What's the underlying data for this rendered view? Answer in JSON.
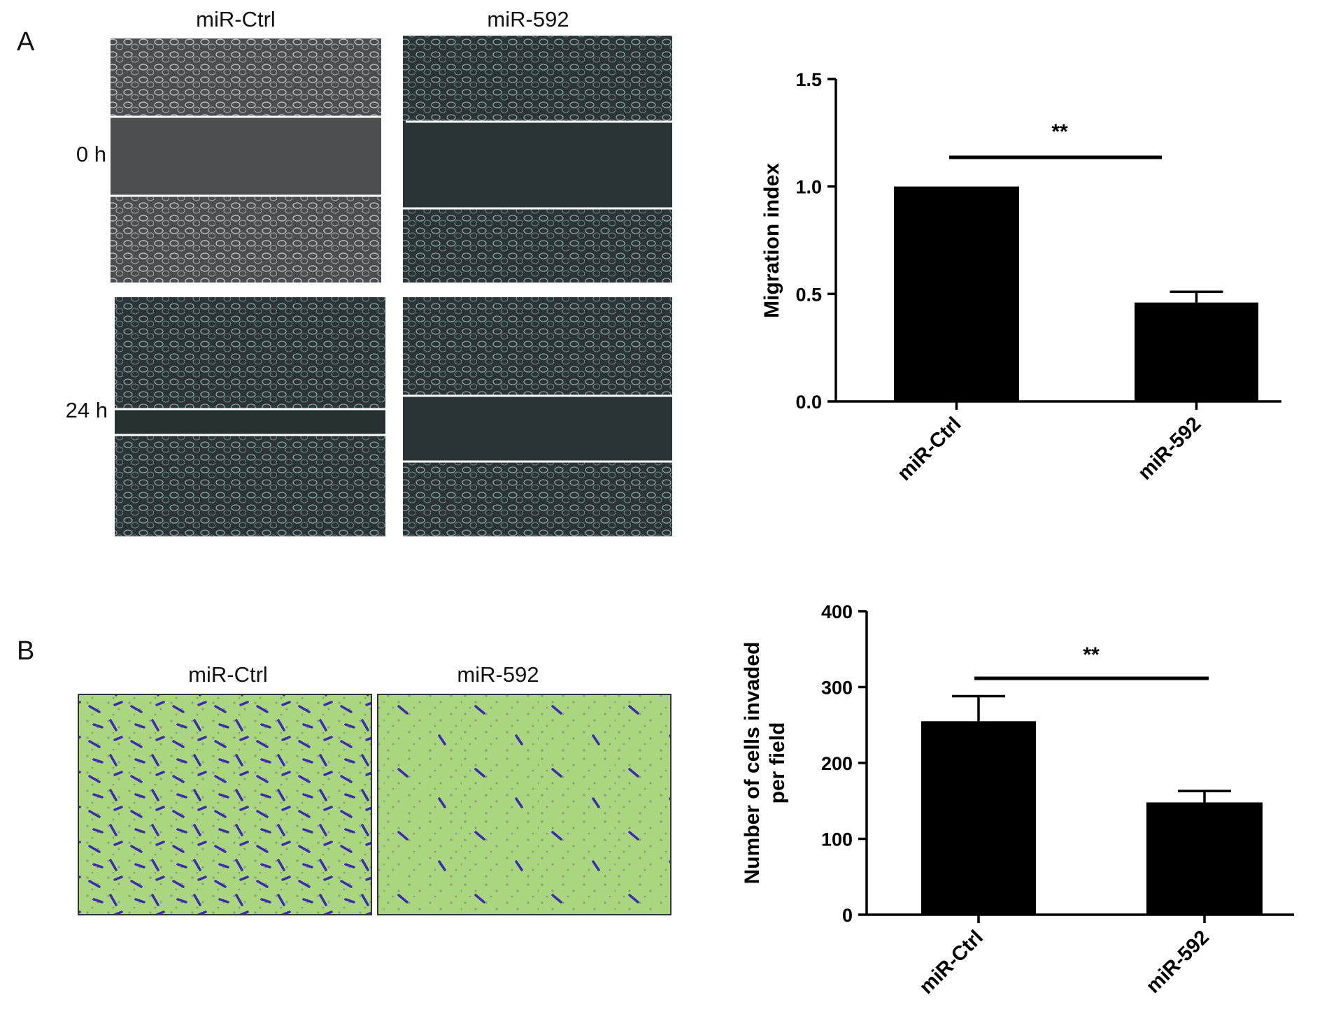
{
  "figure": {
    "panel_labels": [
      "A",
      "B"
    ],
    "wound_columns": [
      "miR-Ctrl",
      "miR-592"
    ],
    "wound_rows": [
      "0 h",
      "24 h"
    ],
    "invasion_columns": [
      "miR-Ctrl",
      "miR-592"
    ]
  },
  "chart_data": [
    {
      "type": "bar",
      "ylabel": [
        "Migration index"
      ],
      "categories": [
        "miR-Ctrl",
        "miR-592"
      ],
      "values": [
        1.0,
        0.46
      ],
      "errors": [
        null,
        0.05
      ],
      "color": "#000000",
      "ylim": [
        0,
        1.5
      ],
      "yticks": [
        {
          "value": 0,
          "label": "0.0"
        },
        0.5,
        {
          "value": 1,
          "label": "1.0"
        },
        1.5
      ],
      "annotation": "**"
    },
    {
      "type": "bar",
      "ylabel": [
        "Number of cells invaded",
        "per field"
      ],
      "categories": [
        "miR-Ctrl",
        "miR-592"
      ],
      "values": [
        255,
        148
      ],
      "errors": [
        33,
        15
      ],
      "color": "#000000",
      "ylim": [
        0,
        400
      ],
      "yticks": [
        0,
        100,
        200,
        300,
        400
      ],
      "annotation": "**"
    }
  ]
}
